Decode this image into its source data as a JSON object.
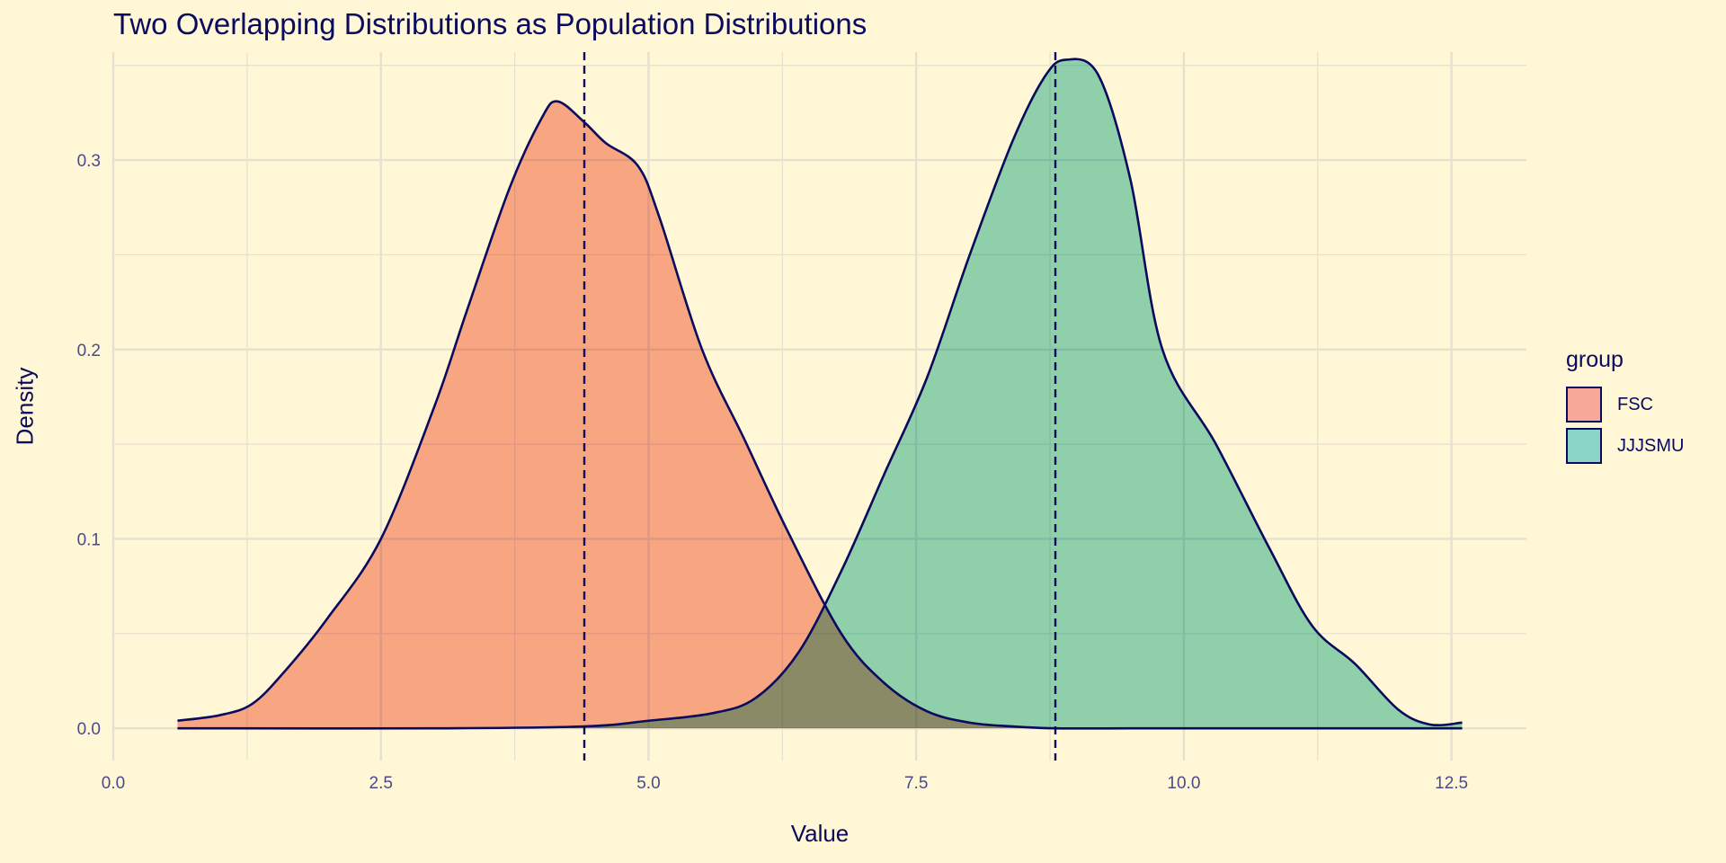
{
  "chart_data": {
    "type": "area",
    "title": "Two Overlapping Distributions as Population Distributions",
    "xlabel": "Value",
    "ylabel": "Density",
    "xlim": [
      0,
      13.2
    ],
    "ylim": [
      -0.017,
      0.357
    ],
    "x_ticks": [
      "0.0",
      "2.5",
      "5.0",
      "7.5",
      "10.0",
      "12.5"
    ],
    "y_ticks": [
      "0.0",
      "0.1",
      "0.2",
      "0.3"
    ],
    "legend": {
      "title": "group",
      "position": "right"
    },
    "series": [
      {
        "name": "FSC",
        "fill": "#f8a898",
        "mean": 4.4,
        "x": [
          0.6,
          1.0,
          1.3,
          1.6,
          2.0,
          2.5,
          3.0,
          3.3,
          3.7,
          4.0,
          4.15,
          4.4,
          4.6,
          4.9,
          5.1,
          5.5,
          5.9,
          6.3,
          6.8,
          7.2,
          7.6,
          8.0,
          8.4,
          8.8,
          9.5,
          10.5,
          11.5,
          12.6
        ],
        "y": [
          0.004,
          0.007,
          0.013,
          0.03,
          0.058,
          0.1,
          0.17,
          0.22,
          0.285,
          0.322,
          0.331,
          0.32,
          0.309,
          0.297,
          0.27,
          0.2,
          0.152,
          0.104,
          0.05,
          0.024,
          0.009,
          0.003,
          0.001,
          0.0,
          0.0,
          0.0,
          0.0,
          0.0
        ]
      },
      {
        "name": "JJJSMU",
        "fill": "#8bd5c8",
        "mean": 8.8,
        "x": [
          0.6,
          3.0,
          4.4,
          5.0,
          5.6,
          6.0,
          6.4,
          6.8,
          7.2,
          7.6,
          8.0,
          8.4,
          8.7,
          8.9,
          9.2,
          9.5,
          9.8,
          10.3,
          10.8,
          11.2,
          11.6,
          12.0,
          12.3,
          12.6
        ],
        "y": [
          0.0,
          0.0,
          0.001,
          0.004,
          0.008,
          0.016,
          0.04,
          0.083,
          0.134,
          0.185,
          0.25,
          0.31,
          0.344,
          0.353,
          0.345,
          0.29,
          0.2,
          0.15,
          0.095,
          0.054,
          0.034,
          0.01,
          0.002,
          0.003
        ]
      }
    ],
    "colors": {
      "background": "#fff7d6",
      "outline": "#0a0a5e",
      "grid": "#e6e1cf",
      "overlap": "#87aba4"
    }
  }
}
